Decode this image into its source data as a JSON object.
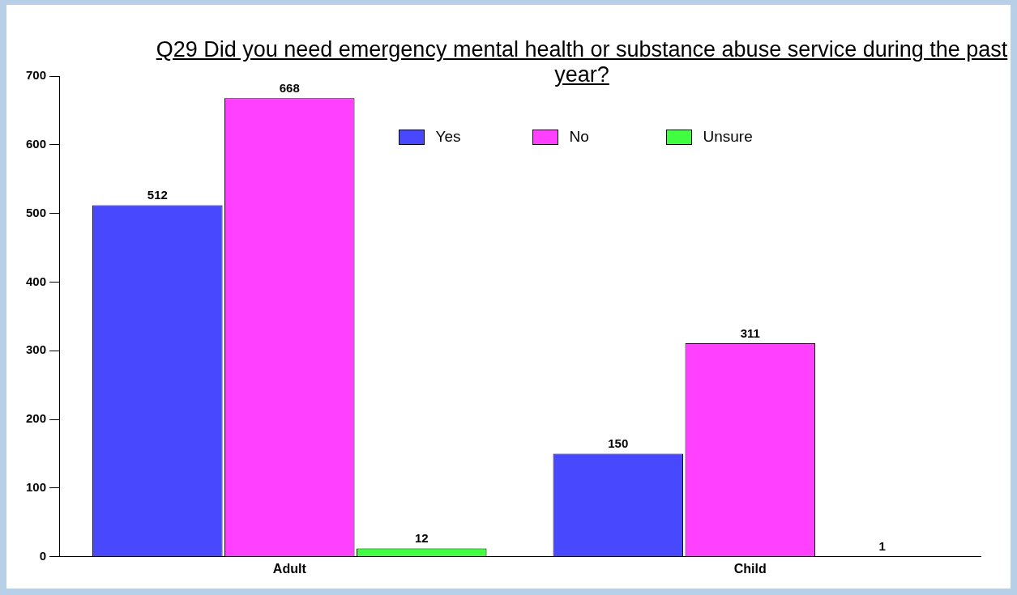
{
  "chart_data": {
    "type": "bar",
    "title": "Q29 Did you need emergency mental health or substance abuse service during the past year?",
    "categories": [
      "Adult",
      "Child"
    ],
    "series": [
      {
        "name": "Yes",
        "color": "#4848ff",
        "values": [
          512,
          150
        ]
      },
      {
        "name": "No",
        "color": "#ff40ff",
        "values": [
          668,
          311
        ]
      },
      {
        "name": "Unsure",
        "color": "#40ff40",
        "values": [
          12,
          1
        ]
      }
    ],
    "ylim": [
      0,
      700
    ],
    "yticks": [
      0,
      100,
      200,
      300,
      400,
      500,
      600,
      700
    ],
    "grid": false,
    "legend": "top",
    "data_labels": true
  }
}
